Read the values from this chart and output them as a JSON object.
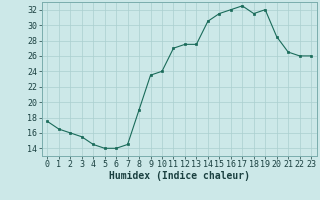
{
  "x": [
    0,
    1,
    2,
    3,
    4,
    5,
    6,
    7,
    8,
    9,
    10,
    11,
    12,
    13,
    14,
    15,
    16,
    17,
    18,
    19,
    20,
    21,
    22,
    23
  ],
  "y": [
    17.5,
    16.5,
    16.0,
    15.5,
    14.5,
    14.0,
    14.0,
    14.5,
    19.0,
    23.5,
    24.0,
    27.0,
    27.5,
    27.5,
    30.5,
    31.5,
    32.0,
    32.5,
    31.5,
    32.0,
    28.5,
    26.5,
    26.0,
    26.0
  ],
  "line_color": "#1a6b5a",
  "marker_color": "#1a6b5a",
  "bg_color": "#cce8e8",
  "grid_color": "#aacfcf",
  "xlabel": "Humidex (Indice chaleur)",
  "ylim": [
    13,
    33
  ],
  "xlim": [
    -0.5,
    23.5
  ],
  "yticks": [
    14,
    16,
    18,
    20,
    22,
    24,
    26,
    28,
    30,
    32
  ],
  "xticks": [
    0,
    1,
    2,
    3,
    4,
    5,
    6,
    7,
    8,
    9,
    10,
    11,
    12,
    13,
    14,
    15,
    16,
    17,
    18,
    19,
    20,
    21,
    22,
    23
  ],
  "font_color": "#1a4040",
  "tick_fontsize": 6,
  "label_fontsize": 7
}
